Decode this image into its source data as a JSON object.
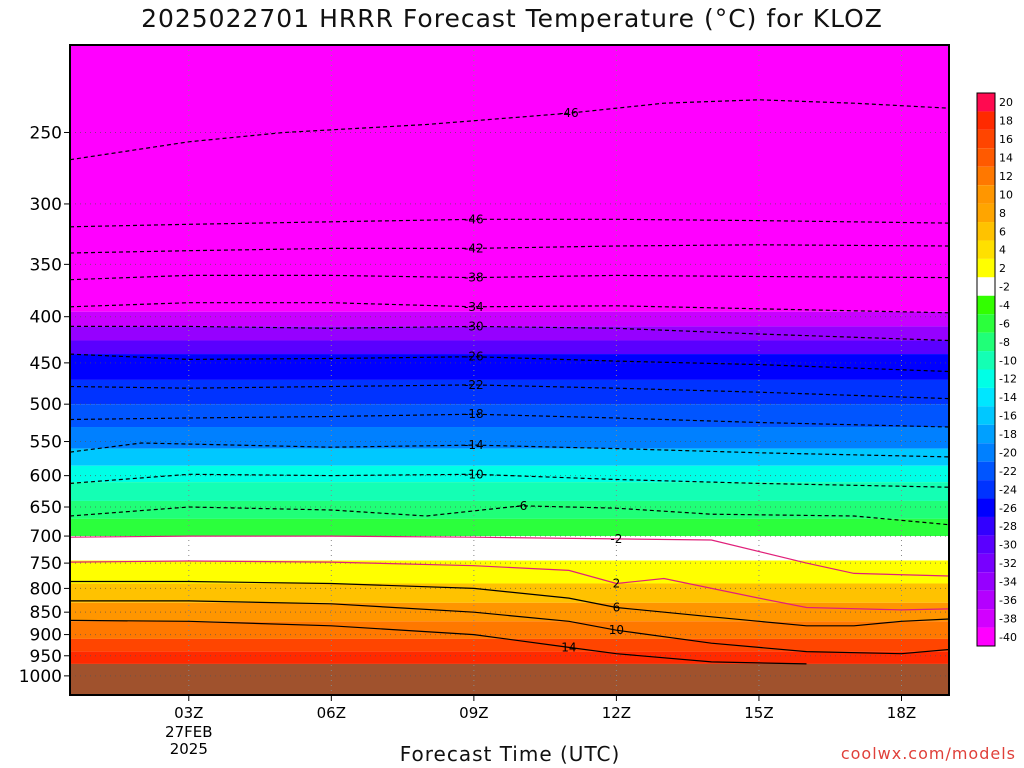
{
  "chart_data": {
    "type": "heatmap",
    "title": "2025022701 HRRR Forecast Temperature (°C) for KLOZ",
    "xlabel": "Forecast Time (UTC)",
    "ylabel": "",
    "x_ticks": [
      "03Z",
      "06Z",
      "09Z",
      "12Z",
      "15Z",
      "18Z"
    ],
    "x_date_labels": [
      "27FEB",
      "2025"
    ],
    "y_ticks": [
      250,
      300,
      350,
      400,
      450,
      500,
      550,
      600,
      650,
      700,
      750,
      800,
      850,
      900,
      950,
      1000
    ],
    "y_scale": "log-pressure",
    "x_range_hours": [
      0.5,
      19
    ],
    "y_range": [
      200,
      1050
    ],
    "surface_pressure": 970,
    "grid": true,
    "colorbar_levels": [
      20,
      18,
      16,
      14,
      12,
      10,
      8,
      6,
      4,
      2,
      -2,
      -4,
      -6,
      -8,
      -10,
      -12,
      -14,
      -16,
      -18,
      -20,
      -22,
      -24,
      -26,
      -28,
      -30,
      -32,
      -34,
      -36,
      -38,
      -40
    ],
    "colorbar_colors": [
      "#ff0a50",
      "#ff2a00",
      "#ff4500",
      "#ff5a00",
      "#ff7800",
      "#ff9600",
      "#ffa500",
      "#ffc200",
      "#ffe000",
      "#ffff00",
      "#ffffff",
      "#32ff00",
      "#2bff3c",
      "#20ff78",
      "#14ffb4",
      "#00ffe6",
      "#00e6ff",
      "#00c8ff",
      "#00a0ff",
      "#0080ff",
      "#0055ff",
      "#0033ff",
      "#0000ff",
      "#3200ff",
      "#5a00ff",
      "#7800ff",
      "#9600ff",
      "#b400ff",
      "#d200ff",
      "#ff00ff"
    ],
    "isotherms": [
      {
        "label": "-46",
        "points": [
          [
            0.5,
            268
          ],
          [
            3,
            256
          ],
          [
            5,
            250
          ],
          [
            8,
            245
          ],
          [
            11,
            238
          ],
          [
            13,
            232
          ],
          [
            15,
            230
          ],
          [
            17,
            232
          ],
          [
            19,
            235
          ]
        ]
      },
      {
        "label": "-46",
        "points": [
          [
            0.5,
            318
          ],
          [
            3,
            316
          ],
          [
            6,
            314
          ],
          [
            9,
            312
          ],
          [
            12,
            312
          ],
          [
            15,
            313
          ],
          [
            19,
            315
          ]
        ]
      },
      {
        "label": "-42",
        "points": [
          [
            0.5,
            340
          ],
          [
            3,
            338
          ],
          [
            6,
            336
          ],
          [
            9,
            336
          ],
          [
            12,
            334
          ],
          [
            15,
            333
          ],
          [
            19,
            334
          ]
        ]
      },
      {
        "label": "-38",
        "points": [
          [
            0.5,
            364
          ],
          [
            3,
            360
          ],
          [
            6,
            360
          ],
          [
            9,
            362
          ],
          [
            12,
            360
          ],
          [
            15,
            361
          ],
          [
            19,
            362
          ]
        ]
      },
      {
        "label": "-34",
        "points": [
          [
            0.5,
            390
          ],
          [
            3,
            386
          ],
          [
            6,
            386
          ],
          [
            9,
            390
          ],
          [
            12,
            389
          ],
          [
            15,
            392
          ],
          [
            19,
            396
          ]
        ]
      },
      {
        "label": "-30",
        "points": [
          [
            0.5,
            410
          ],
          [
            3,
            410
          ],
          [
            6,
            412
          ],
          [
            9,
            410
          ],
          [
            12,
            412
          ],
          [
            15,
            418
          ],
          [
            19,
            425
          ]
        ]
      },
      {
        "label": "-26",
        "points": [
          [
            0.5,
            440
          ],
          [
            3,
            446
          ],
          [
            6,
            445
          ],
          [
            9,
            443
          ],
          [
            12,
            448
          ],
          [
            15,
            452
          ],
          [
            19,
            460
          ]
        ]
      },
      {
        "label": "-22",
        "points": [
          [
            0.5,
            478
          ],
          [
            3,
            480
          ],
          [
            6,
            478
          ],
          [
            9,
            476
          ],
          [
            12,
            480
          ],
          [
            15,
            485
          ],
          [
            19,
            493
          ]
        ]
      },
      {
        "label": "-18",
        "points": [
          [
            0.5,
            520
          ],
          [
            3,
            518
          ],
          [
            6,
            516
          ],
          [
            9,
            513
          ],
          [
            12,
            518
          ],
          [
            15,
            524
          ],
          [
            19,
            530
          ]
        ]
      },
      {
        "label": "-14",
        "points": [
          [
            0.5,
            565
          ],
          [
            2,
            552
          ],
          [
            6,
            558
          ],
          [
            9,
            555
          ],
          [
            12,
            560
          ],
          [
            15,
            566
          ],
          [
            19,
            572
          ]
        ]
      },
      {
        "label": "-10",
        "points": [
          [
            0.5,
            612
          ],
          [
            3,
            598
          ],
          [
            6,
            600
          ],
          [
            9,
            598
          ],
          [
            12,
            606
          ],
          [
            15,
            612
          ],
          [
            19,
            618
          ]
        ]
      },
      {
        "label": "-6",
        "points": [
          [
            0.5,
            665
          ],
          [
            3,
            650
          ],
          [
            6,
            655
          ],
          [
            8,
            665
          ],
          [
            10,
            648
          ],
          [
            12,
            652
          ],
          [
            14,
            662
          ],
          [
            17,
            665
          ],
          [
            19,
            680
          ]
        ]
      },
      {
        "label": "-2",
        "points": [
          [
            0.5,
            702
          ],
          [
            3,
            700
          ],
          [
            6,
            700
          ],
          [
            9,
            702
          ],
          [
            12,
            705
          ],
          [
            14,
            707
          ],
          [
            16,
            750
          ],
          [
            17,
            770
          ],
          [
            19,
            775
          ]
        ]
      },
      {
        "label": "2",
        "points": [
          [
            0.5,
            748
          ],
          [
            3,
            746
          ],
          [
            6,
            748
          ],
          [
            9,
            755
          ],
          [
            11,
            764
          ],
          [
            12,
            790
          ],
          [
            13,
            780
          ],
          [
            15,
            820
          ],
          [
            16,
            840
          ],
          [
            18,
            845
          ],
          [
            19,
            843
          ]
        ]
      },
      {
        "label": "6",
        "points": [
          [
            0.5,
            786
          ],
          [
            3,
            786
          ],
          [
            6,
            790
          ],
          [
            9,
            800
          ],
          [
            11,
            820
          ],
          [
            12,
            840
          ],
          [
            14,
            860
          ],
          [
            16,
            880
          ],
          [
            17,
            880
          ],
          [
            18,
            870
          ],
          [
            19,
            865
          ]
        ]
      },
      {
        "label": "10",
        "points": [
          [
            0.5,
            826
          ],
          [
            3,
            826
          ],
          [
            6,
            832
          ],
          [
            9,
            850
          ],
          [
            11,
            870
          ],
          [
            12,
            890
          ],
          [
            14,
            920
          ],
          [
            16,
            940
          ],
          [
            18,
            945
          ],
          [
            19,
            935
          ]
        ]
      },
      {
        "label": "14",
        "points": [
          [
            0.5,
            868
          ],
          [
            3,
            870
          ],
          [
            6,
            880
          ],
          [
            9,
            900
          ],
          [
            11,
            930
          ],
          [
            12,
            945
          ],
          [
            14,
            965
          ],
          [
            16,
            970
          ]
        ]
      }
    ]
  }
}
